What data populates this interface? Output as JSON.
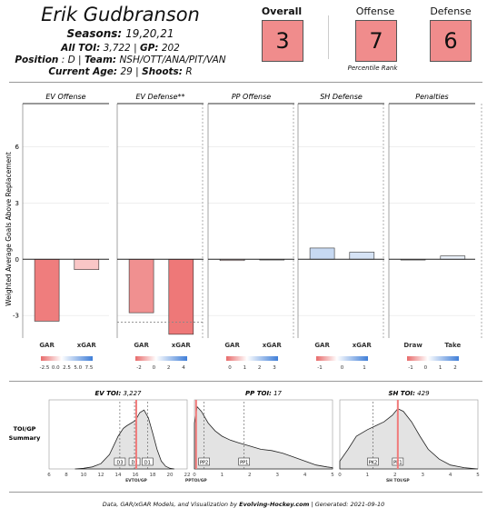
{
  "player": {
    "name": "Erik Gudbranson",
    "seasons_label": "Seasons:",
    "seasons": "19,20,21",
    "toi_label": "All TOI:",
    "toi": "3,722",
    "gp_label": "GP:",
    "gp": "202",
    "position_label": "Position",
    "position": "D",
    "team_label": "Team:",
    "team": "NSH/OTT/ANA/PIT/VAN",
    "age_label": "Current Age:",
    "age": "29",
    "shoots_label": "Shoots:",
    "shoots": "R"
  },
  "percentiles": {
    "overall_label": "Overall",
    "overall": "3",
    "offense_label": "Offense",
    "offense": "7",
    "defense_label": "Defense",
    "defense": "6",
    "caption": "Percentile Rank",
    "color": "#f08c8c"
  },
  "chart_data": [
    {
      "type": "bar",
      "ylabel": "Weighted Average Goals Above Replacement",
      "ylim": [
        -4.2,
        8.3
      ],
      "yticks": [
        "-3",
        "0",
        "3",
        "6"
      ],
      "panels": [
        {
          "title": "EV Offense",
          "categories": [
            "GAR",
            "xGAR"
          ],
          "values": [
            -3.3,
            -0.55
          ],
          "colors": [
            "#ef7d7d",
            "#f9c6c6"
          ]
        },
        {
          "title": "EV Defense**",
          "categories": [
            "GAR",
            "xGAR"
          ],
          "values": [
            -2.85,
            -4.0
          ],
          "colors": [
            "#f09090",
            "#ee7878"
          ],
          "reference": -3.35
        },
        {
          "title": "PP Offense",
          "categories": [
            "GAR",
            "xGAR"
          ],
          "values": [
            -0.07,
            -0.02
          ],
          "colors": [
            "#fbe4e4",
            "#fbecec"
          ]
        },
        {
          "title": "SH Defense",
          "categories": [
            "GAR",
            "xGAR"
          ],
          "values": [
            0.6,
            0.38
          ],
          "colors": [
            "#c7d9f2",
            "#d6e3f5"
          ]
        },
        {
          "title": "Penalties",
          "categories": [
            "Draw",
            "Take"
          ],
          "values": [
            -0.03,
            0.18
          ],
          "colors": [
            "#fbecec",
            "#eaf0f9"
          ]
        }
      ],
      "color_scales": [
        [
          "-2.5",
          "0.0",
          "2.5",
          "5.0",
          "7.5"
        ],
        [
          "-2",
          "0",
          "2",
          "4"
        ],
        [
          "0",
          "1",
          "2",
          "3"
        ],
        [
          "-1",
          "0",
          "1"
        ],
        [
          "-1",
          "0",
          "1",
          "2"
        ]
      ]
    },
    {
      "type": "area",
      "row_label": "TOI/GP Summary",
      "panels": [
        {
          "title": "EV TOI:",
          "value": "3,227",
          "xlabel": "EVTOI/GP",
          "xlim": [
            6,
            22
          ],
          "xticks": [
            "6",
            "8",
            "10",
            "12",
            "14",
            "16",
            "18",
            "20",
            "22"
          ],
          "player": 16.1,
          "density": [
            [
              9,
              0
            ],
            [
              10,
              0.01
            ],
            [
              11,
              0.03
            ],
            [
              12,
              0.08
            ],
            [
              13,
              0.22
            ],
            [
              14,
              0.5
            ],
            [
              14.6,
              0.62
            ],
            [
              15,
              0.66
            ],
            [
              15.5,
              0.7
            ],
            [
              16,
              0.74
            ],
            [
              16.5,
              0.86
            ],
            [
              17,
              0.9
            ],
            [
              17.5,
              0.78
            ],
            [
              18,
              0.55
            ],
            [
              18.5,
              0.3
            ],
            [
              19,
              0.12
            ],
            [
              19.5,
              0.04
            ],
            [
              20,
              0.01
            ],
            [
              20.5,
              0
            ]
          ],
          "markers": [
            {
              "label": "D3",
              "x": 14.2
            },
            {
              "label": "D2",
              "x": 15.9
            },
            {
              "label": "D1",
              "x": 17.4
            }
          ]
        },
        {
          "title": "PP TOI:",
          "value": "17",
          "xlabel": "PPTOI/GP",
          "xlim": [
            0,
            5
          ],
          "xticks": [
            "0",
            "1",
            "2",
            "3",
            "4",
            "5"
          ],
          "player": 0.06,
          "density": [
            [
              0,
              0.7
            ],
            [
              0.1,
              0.95
            ],
            [
              0.25,
              0.88
            ],
            [
              0.5,
              0.7
            ],
            [
              0.75,
              0.58
            ],
            [
              1,
              0.5
            ],
            [
              1.3,
              0.44
            ],
            [
              1.6,
              0.4
            ],
            [
              2,
              0.35
            ],
            [
              2.4,
              0.3
            ],
            [
              2.8,
              0.28
            ],
            [
              3.2,
              0.24
            ],
            [
              3.6,
              0.18
            ],
            [
              4,
              0.12
            ],
            [
              4.4,
              0.06
            ],
            [
              4.8,
              0.03
            ],
            [
              5,
              0.02
            ]
          ],
          "markers": [
            {
              "label": "PP2",
              "x": 0.35
            },
            {
              "label": "PP1",
              "x": 1.8
            }
          ]
        },
        {
          "title": "SH TOI:",
          "value": "429",
          "xlabel": "SH TOI/GP",
          "xlim": [
            0,
            5
          ],
          "xticks": [
            "0",
            "1",
            "2",
            "3",
            "4",
            "5"
          ],
          "player": 2.1,
          "density": [
            [
              0,
              0.12
            ],
            [
              0.3,
              0.3
            ],
            [
              0.6,
              0.5
            ],
            [
              1,
              0.6
            ],
            [
              1.3,
              0.66
            ],
            [
              1.6,
              0.72
            ],
            [
              1.9,
              0.82
            ],
            [
              2.1,
              0.92
            ],
            [
              2.3,
              0.88
            ],
            [
              2.6,
              0.72
            ],
            [
              2.9,
              0.5
            ],
            [
              3.2,
              0.3
            ],
            [
              3.6,
              0.15
            ],
            [
              4,
              0.06
            ],
            [
              4.5,
              0.02
            ],
            [
              5,
              0
            ]
          ],
          "markers": [
            {
              "label": "PK2",
              "x": 1.2
            },
            {
              "label": "PK1",
              "x": 2.1
            }
          ]
        }
      ]
    }
  ],
  "footer": {
    "prefix": "Data,  GAR/xGAR Models,  and Visualization   by ",
    "brand": "Evolving-Hockey.com",
    "generated": "  |  Generated:  2021-09-10"
  }
}
